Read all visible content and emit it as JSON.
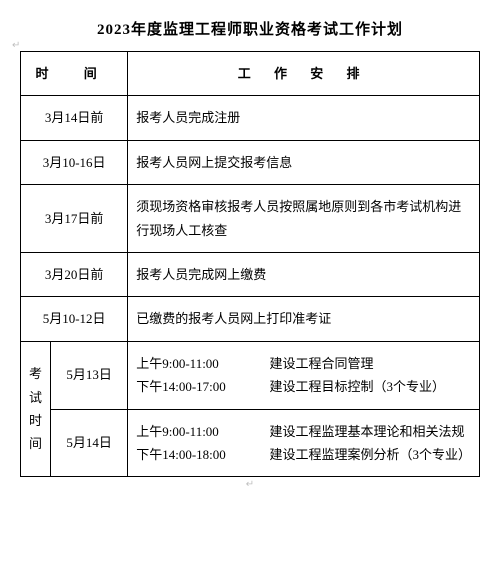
{
  "title": "2023年度监理工程师职业资格考试工作计划",
  "header": {
    "time": "时 间",
    "arrangement": "工 作 安 排"
  },
  "corner_glyph": "↵",
  "rows": [
    {
      "date": "3月14日前",
      "desc": "报考人员完成注册"
    },
    {
      "date": "3月10-16日",
      "desc": "报考人员网上提交报考信息"
    },
    {
      "date": "3月17日前",
      "desc": "须现场资格审核报考人员按照属地原则到各市考试机构进行现场人工核查"
    },
    {
      "date": "3月20日前",
      "desc": "报考人员完成网上缴费"
    },
    {
      "date": "5月10-12日",
      "desc": "已缴费的报考人员网上打印准考证"
    }
  ],
  "exam": {
    "label": "考试时间",
    "days": [
      {
        "date": "5月13日",
        "am_time": "上午9:00-11:00",
        "am_subj": "建设工程合同管理",
        "pm_time": "下午14:00-17:00",
        "pm_subj": "建设工程目标控制（3个专业）"
      },
      {
        "date": "5月14日",
        "am_time": "上午9:00-11:00",
        "am_subj": "建设工程监理基本理论和相关法规",
        "pm_time": "下午14:00-18:00",
        "pm_subj": "建设工程监理案例分析（3个专业）"
      }
    ]
  }
}
